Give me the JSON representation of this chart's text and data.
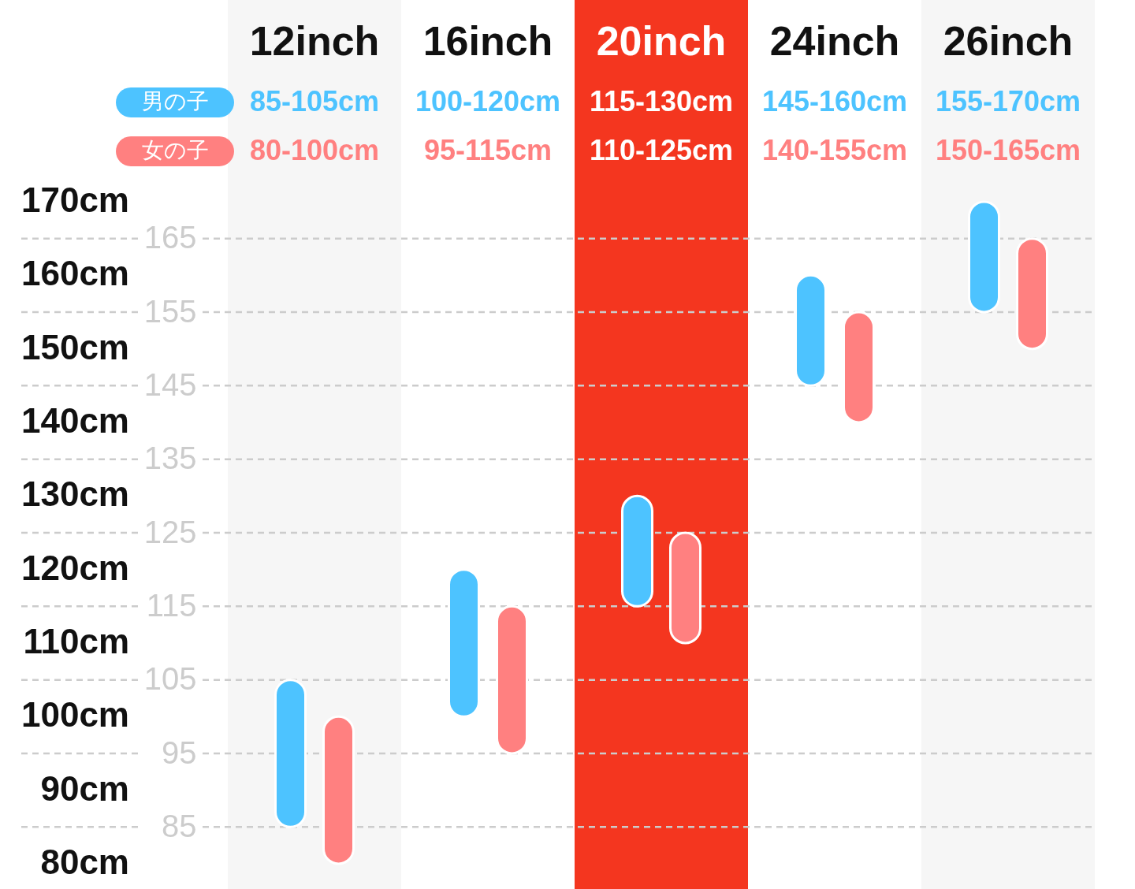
{
  "chart_data": {
    "type": "bar",
    "categories": [
      "12inch",
      "16inch",
      "20inch",
      "24inch",
      "26inch"
    ],
    "series": [
      {
        "name": "男の子",
        "color": "#4dc3ff",
        "base": [
          85,
          100,
          115,
          145,
          155
        ],
        "values": [
          20,
          20,
          15,
          15,
          15
        ],
        "value_labels": [
          "85-105cm",
          "100-120cm",
          "115-130cm",
          "145-160cm",
          "155-170cm"
        ]
      },
      {
        "name": "女の子",
        "color": "#ff8080",
        "base": [
          80,
          95,
          110,
          140,
          150
        ],
        "values": [
          20,
          20,
          15,
          15,
          15
        ],
        "value_labels": [
          "80-100cm",
          "95-115cm",
          "110-125cm",
          "140-155cm",
          "150-165cm"
        ]
      }
    ],
    "ylim": [
      80,
      170
    ],
    "yticks": [
      85,
      95,
      105,
      115,
      125,
      135,
      145,
      155,
      165
    ],
    "y2lim": [
      80,
      170
    ],
    "y2ticks": [
      {
        "value": 80,
        "label": "80cm"
      },
      {
        "value": 90,
        "label": "90cm"
      },
      {
        "value": 100,
        "label": "100cm"
      },
      {
        "value": 110,
        "label": "110cm"
      },
      {
        "value": 120,
        "label": "120cm"
      },
      {
        "value": 130,
        "label": "130cm"
      },
      {
        "value": 140,
        "label": "140cm"
      },
      {
        "value": 150,
        "label": "150cm"
      },
      {
        "value": 160,
        "label": "160cm"
      },
      {
        "value": 170,
        "label": "170cm"
      }
    ],
    "grid": "y",
    "bands": [
      {
        "axis": "x",
        "from": "12inch",
        "to": "12inch",
        "color": "#f6f6f6"
      },
      {
        "axis": "x",
        "from": "20inch",
        "to": "20inch",
        "color": "#f4361f"
      },
      {
        "axis": "x",
        "from": "26inch",
        "to": "26inch",
        "color": "#f6f6f6"
      }
    ],
    "legend": "top left"
  }
}
